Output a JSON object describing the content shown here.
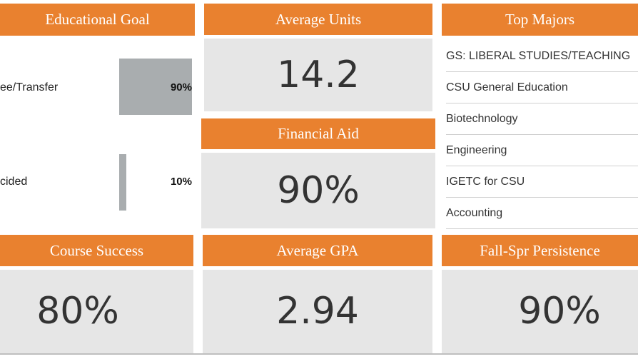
{
  "educational_goal": {
    "title": "Educational Goal",
    "items": [
      {
        "label": "ee/Transfer",
        "percent": "90%",
        "value": 0.9
      },
      {
        "label": "cided",
        "percent": "10%",
        "value": 0.1
      }
    ]
  },
  "average_units": {
    "title": "Average Units",
    "value": "14.2"
  },
  "financial_aid": {
    "title": "Financial Aid",
    "value": "90%"
  },
  "top_majors": {
    "title": "Top Majors",
    "items": [
      "GS: LIBERAL STUDIES/TEACHING",
      "CSU General Education",
      "Biotechnology",
      "Engineering",
      "IGETC for CSU",
      "Accounting"
    ]
  },
  "course_success": {
    "title": "Course Success",
    "value": "80%"
  },
  "average_gpa": {
    "title": "Average GPA",
    "value": "2.94"
  },
  "persistence": {
    "title": "Fall-Spr Persistence",
    "value": "90%"
  },
  "colors": {
    "accent": "#e9812f",
    "panel": "#e6e6e6",
    "bar": "#a9adaf"
  }
}
